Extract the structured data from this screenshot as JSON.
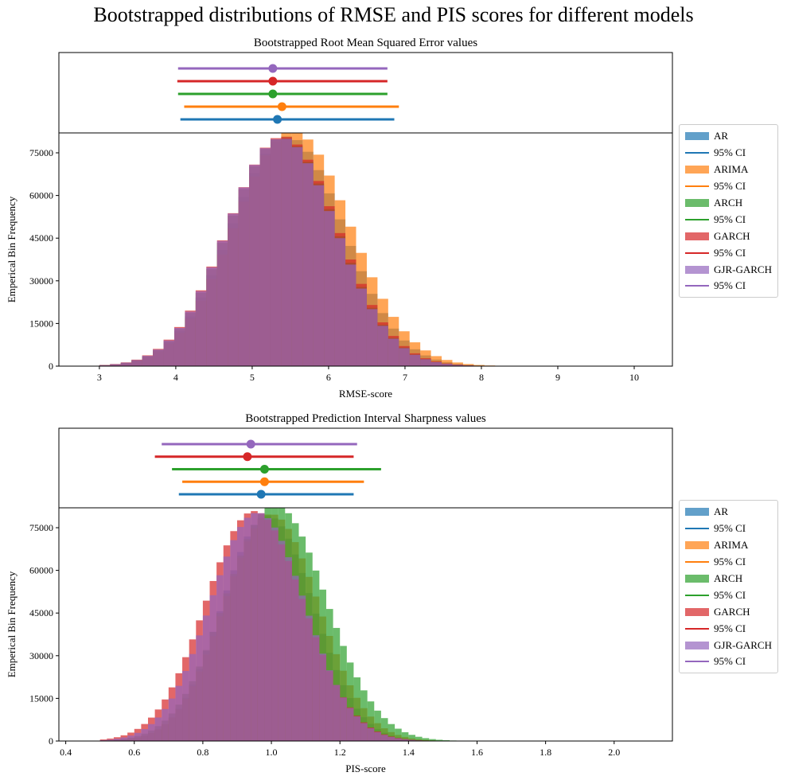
{
  "figure": {
    "suptitle": "Bootstrapped distributions of RMSE and PIS scores for different models",
    "ci_label": "95% CI"
  },
  "models": [
    {
      "name": "AR",
      "color": "#1f77b4"
    },
    {
      "name": "ARIMA",
      "color": "#ff7f0e"
    },
    {
      "name": "ARCH",
      "color": "#2ca02c"
    },
    {
      "name": "GARCH",
      "color": "#d62728"
    },
    {
      "name": "GJR-GARCH",
      "color": "#9467bd"
    }
  ],
  "chart_data": [
    {
      "type": "histogram",
      "title": "Bootstrapped Root Mean Squared Error values",
      "xlabel": "RMSE-score",
      "ylabel": "Emperical Bin Frequency",
      "xlim": [
        2.47,
        10.5
      ],
      "ylim": [
        0,
        82000
      ],
      "xticks": [
        3,
        4,
        5,
        6,
        7,
        8,
        9,
        10
      ],
      "yticks": [
        0,
        15000,
        30000,
        45000,
        60000,
        75000
      ],
      "legend": "outside-right",
      "ci": [
        {
          "model": "AR",
          "low": 4.06,
          "mean": 5.33,
          "high": 6.86
        },
        {
          "model": "ARIMA",
          "low": 4.11,
          "mean": 5.39,
          "high": 6.92
        },
        {
          "model": "ARCH",
          "low": 4.03,
          "mean": 5.27,
          "high": 6.77
        },
        {
          "model": "GARCH",
          "low": 4.02,
          "mean": 5.27,
          "high": 6.77
        },
        {
          "model": "GJR-GARCH",
          "low": 4.03,
          "mean": 5.27,
          "high": 6.77
        }
      ],
      "series": [
        {
          "name": "AR",
          "mean": 5.33,
          "sd": 0.74,
          "peak": 79500,
          "skew": 0.18
        },
        {
          "name": "ARIMA",
          "mean": 5.39,
          "sd": 0.76,
          "peak": 81500,
          "skew": 0.18
        },
        {
          "name": "ARCH",
          "mean": 5.27,
          "sd": 0.72,
          "peak": 79000,
          "skew": 0.18
        },
        {
          "name": "GARCH",
          "mean": 5.27,
          "sd": 0.73,
          "peak": 79500,
          "skew": 0.18
        },
        {
          "name": "GJR-GARCH",
          "mean": 5.26,
          "sd": 0.72,
          "peak": 79000,
          "skew": 0.18
        }
      ],
      "bin_width": 0.14,
      "range": [
        3.0,
        8.6
      ]
    },
    {
      "type": "histogram",
      "title": "Bootstrapped Prediction Interval Sharpness values",
      "xlabel": "PIS-score",
      "ylabel": "Emperical Bin Frequency",
      "xlim": [
        0.38,
        2.17
      ],
      "ylim": [
        0,
        82000
      ],
      "xticks": [
        0.4,
        0.6,
        0.8,
        1.0,
        1.2,
        1.4,
        1.6,
        1.8,
        2.0
      ],
      "yticks": [
        0,
        15000,
        30000,
        45000,
        60000,
        75000
      ],
      "legend": "outside-right",
      "ci": [
        {
          "model": "AR",
          "low": 0.73,
          "mean": 0.97,
          "high": 1.24
        },
        {
          "model": "ARIMA",
          "low": 0.74,
          "mean": 0.98,
          "high": 1.27
        },
        {
          "model": "ARCH",
          "low": 0.71,
          "mean": 0.98,
          "high": 1.32
        },
        {
          "model": "GARCH",
          "low": 0.66,
          "mean": 0.93,
          "high": 1.24
        },
        {
          "model": "GJR-GARCH",
          "low": 0.68,
          "mean": 0.94,
          "high": 1.25
        }
      ],
      "series": [
        {
          "name": "AR",
          "mean": 0.96,
          "sd": 0.135,
          "peak": 77500,
          "skew": 0.22
        },
        {
          "name": "ARIMA",
          "mean": 0.97,
          "sd": 0.14,
          "peak": 78000,
          "skew": 0.22
        },
        {
          "name": "ARCH",
          "mean": 0.98,
          "sd": 0.15,
          "peak": 81000,
          "skew": 0.22
        },
        {
          "name": "GARCH",
          "mean": 0.92,
          "sd": 0.145,
          "peak": 79000,
          "skew": 0.22
        },
        {
          "name": "GJR-GARCH",
          "mean": 0.93,
          "sd": 0.14,
          "peak": 78500,
          "skew": 0.22
        }
      ],
      "bin_width": 0.02,
      "range": [
        0.5,
        1.72
      ]
    }
  ]
}
